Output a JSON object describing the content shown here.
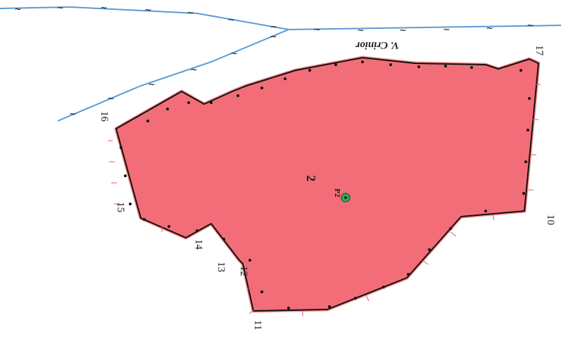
{
  "map": {
    "parcel": {
      "number": "2",
      "fill": "#f26d78",
      "outline": "#111111",
      "buffer": "#e8e24a"
    },
    "point": {
      "label": "P2",
      "color": "#3aa85a"
    },
    "stream": {
      "name": "V. Crinior",
      "color": "#5b9bd5",
      "glyph": "~"
    },
    "vertices": [
      "10",
      "11",
      "12",
      "13",
      "14",
      "15",
      "16",
      "17"
    ]
  }
}
